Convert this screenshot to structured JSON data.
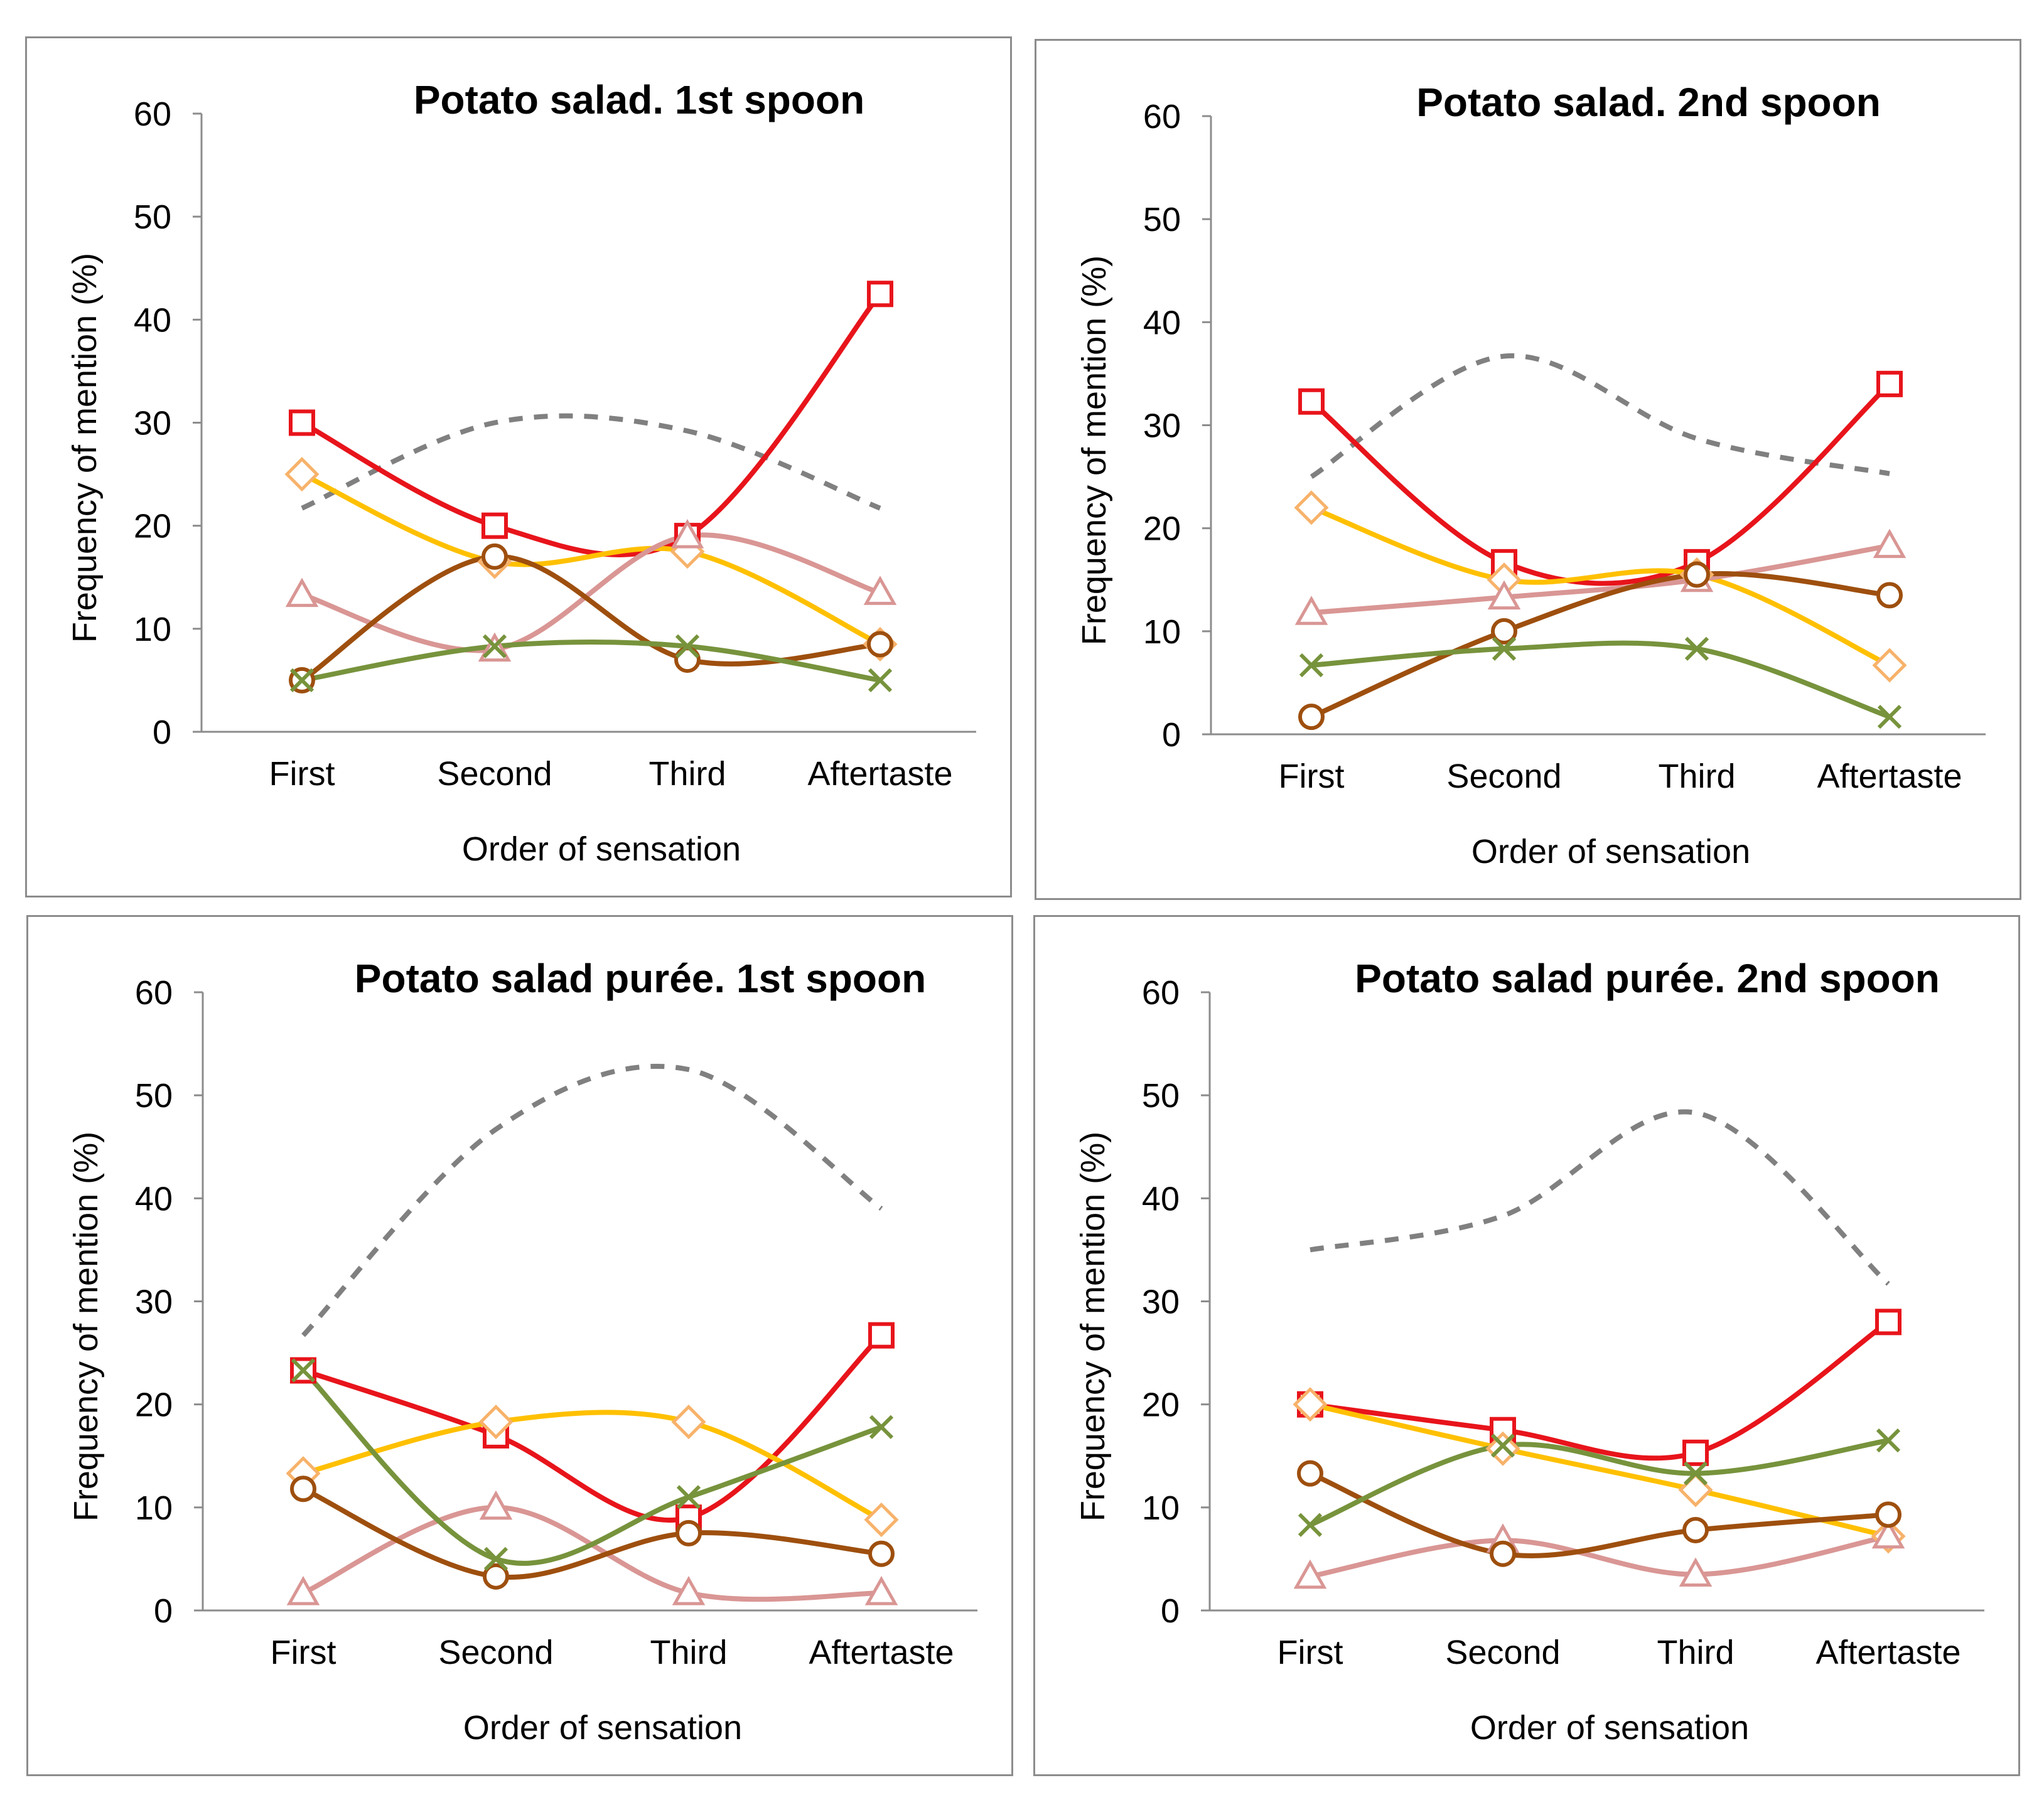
{
  "figure": "four-panel line charts",
  "series_styles": [
    {
      "key": "red",
      "color": "#e8141b",
      "marker": "square",
      "dash": false
    },
    {
      "key": "gold",
      "color": "#ffc000",
      "marker": "diamond",
      "dash": false,
      "marker_stroke": "#f7b26a"
    },
    {
      "key": "pink",
      "color": "#d99694",
      "marker": "triangle",
      "dash": false
    },
    {
      "key": "brown",
      "color": "#9e4f0e",
      "marker": "circle",
      "dash": false
    },
    {
      "key": "green",
      "color": "#77933c",
      "marker": "x",
      "dash": false
    },
    {
      "key": "gray",
      "color": "#808080",
      "marker": "none",
      "dash": true
    }
  ],
  "chart_data": [
    {
      "type": "line",
      "title": "Potato salad. 1st spoon",
      "xlabel": "Order of sensation",
      "ylabel": "Frequency of mention (%)",
      "categories": [
        "First",
        "Second",
        "Third",
        "Aftertaste"
      ],
      "ylim": [
        0,
        60
      ],
      "yticks": [
        0,
        10,
        20,
        30,
        40,
        50,
        60
      ],
      "series": [
        {
          "key": "red",
          "values": [
            30,
            20,
            19,
            42.5
          ]
        },
        {
          "key": "gold",
          "values": [
            25,
            16.5,
            17.5,
            8.5
          ]
        },
        {
          "key": "pink",
          "values": [
            13.3,
            8,
            19,
            13.5
          ]
        },
        {
          "key": "brown",
          "values": [
            5,
            17,
            7,
            8.5
          ]
        },
        {
          "key": "green",
          "values": [
            5,
            8.3,
            8.3,
            5
          ]
        },
        {
          "key": "gray",
          "values": [
            21.7,
            30,
            29.2,
            21.7
          ]
        }
      ]
    },
    {
      "type": "line",
      "title": "Potato salad. 2nd spoon",
      "xlabel": "Order of sensation",
      "ylabel": "Frequency of mention (%)",
      "categories": [
        "First",
        "Second",
        "Third",
        "Aftertaste"
      ],
      "ylim": [
        0,
        60
      ],
      "yticks": [
        0,
        10,
        20,
        30,
        40,
        50,
        60
      ],
      "series": [
        {
          "key": "red",
          "values": [
            32.3,
            16.7,
            16.7,
            34
          ]
        },
        {
          "key": "gold",
          "values": [
            22,
            15,
            15.5,
            6.7
          ]
        },
        {
          "key": "pink",
          "values": [
            11.8,
            13.3,
            15,
            18.3
          ]
        },
        {
          "key": "brown",
          "values": [
            1.7,
            10,
            15.5,
            13.5
          ]
        },
        {
          "key": "green",
          "values": [
            6.7,
            8.3,
            8.3,
            1.7
          ]
        },
        {
          "key": "gray",
          "values": [
            25,
            36.7,
            28.7,
            25.3
          ]
        }
      ]
    },
    {
      "type": "line",
      "title": "Potato salad purée. 1st spoon",
      "xlabel": "Order of sensation",
      "ylabel": "Frequency of mention (%)",
      "categories": [
        "First",
        "Second",
        "Third",
        "Aftertaste"
      ],
      "ylim": [
        0,
        60
      ],
      "yticks": [
        0,
        10,
        20,
        30,
        40,
        50,
        60
      ],
      "series": [
        {
          "key": "red",
          "values": [
            23.3,
            17,
            9,
            26.7
          ]
        },
        {
          "key": "gold",
          "values": [
            13.3,
            18.3,
            18.3,
            8.8
          ]
        },
        {
          "key": "pink",
          "values": [
            1.7,
            10,
            1.7,
            1.7
          ]
        },
        {
          "key": "brown",
          "values": [
            11.8,
            3.3,
            7.5,
            5.5
          ]
        },
        {
          "key": "green",
          "values": [
            23.3,
            5,
            11,
            17.8
          ]
        },
        {
          "key": "gray",
          "values": [
            26.7,
            46.7,
            52.5,
            39
          ]
        }
      ]
    },
    {
      "type": "line",
      "title": "Potato salad purée. 2nd spoon",
      "xlabel": "Order of sensation",
      "ylabel": "Frequency of mention (%)",
      "categories": [
        "First",
        "Second",
        "Third",
        "Aftertaste"
      ],
      "ylim": [
        0,
        60
      ],
      "yticks": [
        0,
        10,
        20,
        30,
        40,
        50,
        60
      ],
      "series": [
        {
          "key": "red",
          "values": [
            20,
            17.5,
            15.3,
            28
          ]
        },
        {
          "key": "gold",
          "values": [
            20,
            15.7,
            11.7,
            7.2
          ]
        },
        {
          "key": "pink",
          "values": [
            3.3,
            6.8,
            3.5,
            7.2
          ]
        },
        {
          "key": "brown",
          "values": [
            13.3,
            5.5,
            7.8,
            9.3
          ]
        },
        {
          "key": "green",
          "values": [
            8.3,
            16,
            13.3,
            16.5
          ]
        },
        {
          "key": "gray",
          "values": [
            35,
            38.3,
            48.3,
            31.7
          ]
        }
      ]
    }
  ]
}
